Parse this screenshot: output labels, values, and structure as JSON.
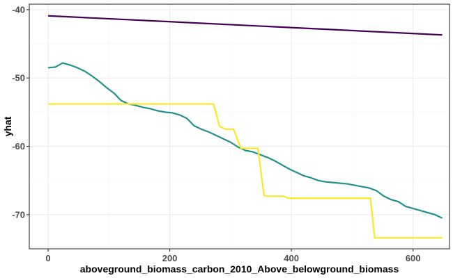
{
  "chart_data": {
    "type": "line",
    "title": "",
    "xlabel": "aboveground_biomass_carbon_2010_Above_belowground_biomass",
    "ylabel": "yhat",
    "xlim": [
      -31,
      660
    ],
    "ylim": [
      -75,
      -39.2
    ],
    "x_ticks": [
      0,
      200,
      400,
      600
    ],
    "x_tick_labels": [
      "0",
      "200",
      "400",
      "600"
    ],
    "y_ticks": [
      -70,
      -60,
      -50,
      -40
    ],
    "y_tick_labels": [
      "-70",
      "-60",
      "-50",
      "-40"
    ],
    "x_minor": [
      100,
      300,
      500
    ],
    "y_minor": [
      -65,
      -55,
      -45
    ],
    "grid": true,
    "legend": "none",
    "colors": {
      "panel_border": "#333333",
      "grid_major": "#ebebeb",
      "grid_minor": "#f5f5f5",
      "tick": "#333333"
    },
    "series": [
      {
        "color": "#440154",
        "x": [
          0,
          648
        ],
        "y": [
          -40.9,
          -43.7
        ]
      },
      {
        "color": "#21908c",
        "x": [
          0,
          12,
          24,
          36,
          48,
          60,
          72,
          84,
          96,
          108,
          120,
          132,
          144,
          156,
          168,
          180,
          192,
          204,
          216,
          228,
          240,
          252,
          264,
          276,
          288,
          300,
          312,
          324,
          336,
          348,
          360,
          372,
          384,
          396,
          408,
          420,
          432,
          444,
          456,
          468,
          480,
          492,
          504,
          516,
          528,
          540,
          552,
          564,
          576,
          588,
          600,
          612,
          624,
          636,
          648
        ],
        "y": [
          -48.5,
          -48.4,
          -47.8,
          -48.1,
          -48.5,
          -49.0,
          -49.7,
          -50.5,
          -51.4,
          -52.2,
          -53.3,
          -53.8,
          -54.0,
          -54.3,
          -54.5,
          -54.8,
          -55.0,
          -55.1,
          -55.4,
          -55.9,
          -57.0,
          -57.5,
          -57.9,
          -58.4,
          -58.9,
          -59.4,
          -60.1,
          -60.6,
          -60.8,
          -61.2,
          -61.6,
          -62.1,
          -62.7,
          -63.3,
          -63.8,
          -64.3,
          -64.6,
          -65.0,
          -65.2,
          -65.3,
          -65.4,
          -65.5,
          -65.7,
          -65.9,
          -66.1,
          -66.5,
          -67.3,
          -67.8,
          -68.1,
          -68.8,
          -69.1,
          -69.4,
          -69.7,
          -70.0,
          -70.5
        ]
      },
      {
        "color": "#fde725",
        "x": [
          0,
          272,
          282,
          292,
          305,
          317,
          325,
          345,
          355,
          360,
          380,
          387,
          395,
          530,
          537,
          545,
          648
        ],
        "y": [
          -53.8,
          -53.8,
          -57.1,
          -57.5,
          -57.5,
          -60.3,
          -60.3,
          -60.3,
          -67.2,
          -67.3,
          -67.3,
          -67.3,
          -67.6,
          -67.6,
          -73.4,
          -73.4,
          -73.4
        ]
      }
    ]
  }
}
